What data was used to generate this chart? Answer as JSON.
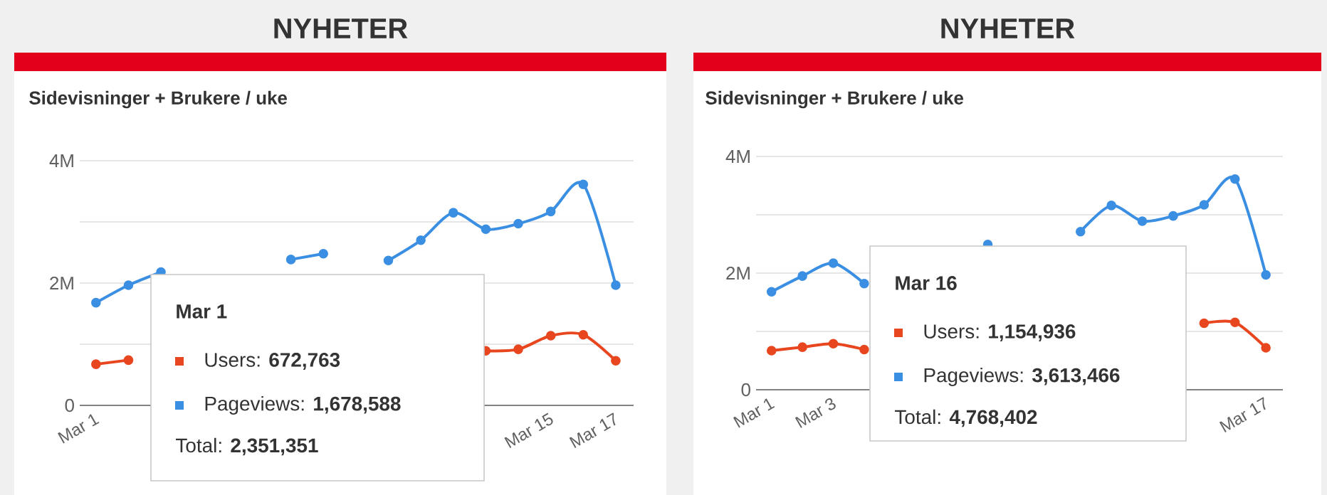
{
  "chart_data": [
    {
      "type": "line",
      "title": "NYHETER",
      "subtitle": "Sidevisninger + Brukere / uke",
      "categories": [
        "Mar 1",
        null,
        null,
        null,
        null,
        null,
        null,
        null,
        null,
        null,
        null,
        null,
        null,
        null,
        "Mar 15",
        null,
        "Mar 17"
      ],
      "series": [
        {
          "color": "#e8461f",
          "values": [
            672763,
            740000,
            null,
            null,
            null,
            null,
            null,
            null,
            null,
            null,
            null,
            null,
            893000,
            917000,
            1140000,
            1154936,
            730000
          ]
        },
        {
          "color": "#3b8fe3",
          "values": [
            1678588,
            1965000,
            2180000,
            null,
            null,
            null,
            2385000,
            2480000,
            null,
            2370000,
            2700000,
            3150000,
            2880000,
            2970000,
            3170000,
            3613466,
            1965000
          ]
        }
      ],
      "ylim": [
        0,
        4000000
      ],
      "yticks": [
        {
          "value": 0,
          "label": "0"
        },
        {
          "value": 1000000,
          "label": null
        },
        {
          "value": 2000000,
          "label": "2M"
        },
        {
          "value": 3000000,
          "label": null
        },
        {
          "value": 4000000,
          "label": "4M"
        }
      ],
      "grid": "y",
      "marker": "circle",
      "line_style": "solid",
      "annotations": [
        "Mar 1",
        "Users: **672,763**",
        "Pageviews: **1,678,588**",
        "Total: **2,351,351**"
      ]
    },
    {
      "type": "line",
      "title": "NYHETER",
      "subtitle": "Sidevisninger + Brukere / uke",
      "categories": [
        "Mar 1",
        null,
        "Mar 3",
        null,
        null,
        null,
        null,
        null,
        null,
        null,
        null,
        null,
        null,
        null,
        null,
        null,
        "Mar 17"
      ],
      "series": [
        {
          "color": "#e8461f",
          "values": [
            670000,
            730000,
            790000,
            690000,
            null,
            null,
            null,
            null,
            null,
            null,
            null,
            null,
            null,
            null,
            1140000,
            1154936,
            720000
          ]
        },
        {
          "color": "#3b8fe3",
          "values": [
            1680000,
            1950000,
            2170000,
            1820000,
            null,
            null,
            null,
            2490000,
            null,
            null,
            2710000,
            3160000,
            2890000,
            2980000,
            3170000,
            3613466,
            1970000
          ]
        }
      ],
      "ylim": [
        0,
        4000000
      ],
      "yticks": [
        {
          "value": 0,
          "label": "0"
        },
        {
          "value": 1000000,
          "label": null
        },
        {
          "value": 2000000,
          "label": "2M"
        },
        {
          "value": 3000000,
          "label": null
        },
        {
          "value": 4000000,
          "label": "4M"
        }
      ],
      "grid": "y",
      "marker": "circle",
      "line_style": "solid",
      "annotations": [
        "Mar 16",
        "Users: **1,154,936**",
        "Pageviews: **3,613,466**",
        "Total: **4,768,402**"
      ]
    }
  ]
}
